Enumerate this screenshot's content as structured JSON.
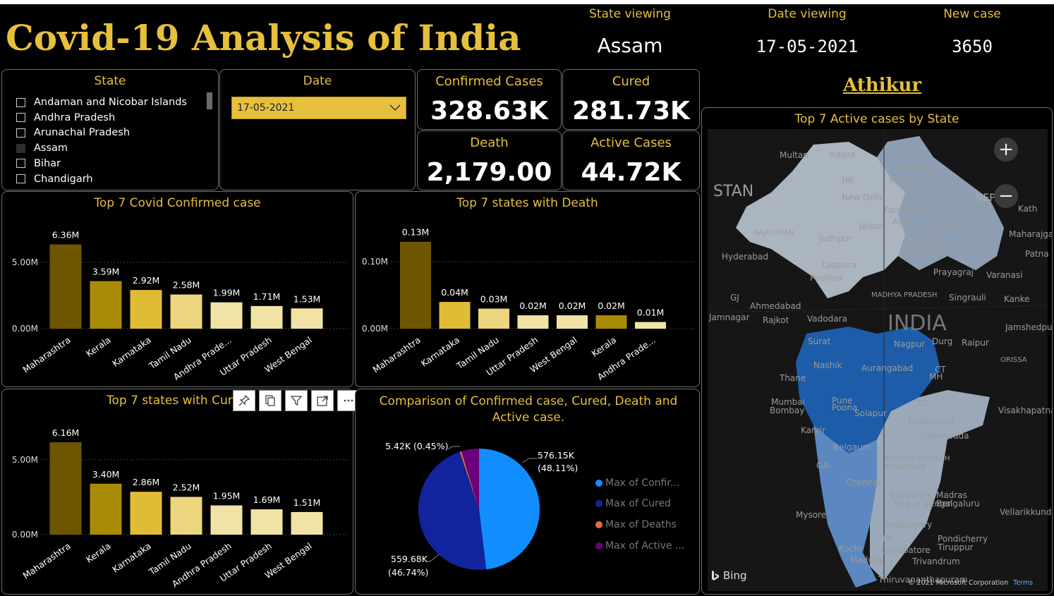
{
  "header": {
    "title": "Covid-19 Analysis of India",
    "state_viewing_label": "State viewing",
    "state_viewing_value": "Assam",
    "date_viewing_label": "Date viewing",
    "date_viewing_value": "17-05-2021",
    "new_case_label": "New case",
    "new_case_value": "3650"
  },
  "state_slicer": {
    "title": "State",
    "items": [
      {
        "label": "Andaman and Nicobar Islands",
        "selected": false
      },
      {
        "label": "Andhra Pradesh",
        "selected": false
      },
      {
        "label": "Arunachal Pradesh",
        "selected": false
      },
      {
        "label": "Assam",
        "selected": true
      },
      {
        "label": "Bihar",
        "selected": false
      },
      {
        "label": "Chandigarh",
        "selected": false
      }
    ]
  },
  "date_slicer": {
    "title": "Date",
    "value": "17-05-2021"
  },
  "kpis": {
    "confirmed": {
      "label": "Confirmed Cases",
      "value": "328.63K"
    },
    "cured": {
      "label": "Cured",
      "value": "281.73K"
    },
    "death": {
      "label": "Death",
      "value": "2,179.00"
    },
    "active": {
      "label": "Active Cases",
      "value": "44.72K"
    }
  },
  "author": "Athikur",
  "colors": {
    "accent": "#e6bf3c",
    "bar_dark": "#6e5600",
    "bar_mid": "#a98b05",
    "bar_gold": "#e0bc36",
    "bar_light": "#ecd57d",
    "bar_pale": "#f1e3a6",
    "pie_confirmed": "#118dff",
    "pie_cured": "#12239e",
    "pie_deaths": "#e66c37",
    "pie_active": "#6b007b"
  },
  "chart_data": [
    {
      "type": "bar",
      "title": "Top 7 Covid Confirmed case",
      "categories": [
        "Maharashtra",
        "Kerala",
        "Karnataka",
        "Tamil Nadu",
        "Andhra Prade...",
        "Uttar Pradesh",
        "West Bengal"
      ],
      "values": [
        6.36,
        3.59,
        2.92,
        2.58,
        1.99,
        1.71,
        1.53
      ],
      "data_labels": [
        "6.36M",
        "3.59M",
        "2.92M",
        "2.58M",
        "1.99M",
        "1.71M",
        "1.53M"
      ],
      "bar_colors": [
        "#6e5600",
        "#a98b05",
        "#e0bc36",
        "#ecd57d",
        "#f1e3a6",
        "#f1e3a6",
        "#f1e3a6"
      ],
      "yticks": [
        0,
        5
      ],
      "ytick_labels": [
        "0.00M",
        "5.00M"
      ],
      "ylim": [
        0,
        6.6
      ],
      "grid": true
    },
    {
      "type": "bar",
      "title": "Top 7 states with Death",
      "categories": [
        "Maharashtra",
        "Karnataka",
        "Tamil Nadu",
        "Uttar Pradesh",
        "West Bengal",
        "Kerala",
        "Andhra Prade..."
      ],
      "values": [
        0.13,
        0.04,
        0.03,
        0.02,
        0.02,
        0.02,
        0.01
      ],
      "data_labels": [
        "0.13M",
        "0.04M",
        "0.03M",
        "0.02M",
        "0.02M",
        "0.02M",
        "0.01M"
      ],
      "bar_colors": [
        "#6e5600",
        "#e0bc36",
        "#ecd57d",
        "#f1e3a6",
        "#f1e3a6",
        "#a98b05",
        "#f1e3a6"
      ],
      "yticks": [
        0,
        0.1
      ],
      "ytick_labels": [
        "0.00M",
        "0.10M"
      ],
      "ylim": [
        0,
        0.135
      ],
      "grid": true
    },
    {
      "type": "bar",
      "title": "Top 7 states with Cured",
      "categories": [
        "Maharashtra",
        "Kerala",
        "Karnataka",
        "Tamil Nadu",
        "Andhra Pradesh",
        "Uttar Pradesh",
        "West Bengal"
      ],
      "values": [
        6.16,
        3.4,
        2.86,
        2.52,
        1.95,
        1.69,
        1.51
      ],
      "data_labels": [
        "6.16M",
        "3.40M",
        "2.86M",
        "2.52M",
        "1.95M",
        "1.69M",
        "1.51M"
      ],
      "bar_colors": [
        "#6e5600",
        "#a98b05",
        "#e0bc36",
        "#ecd57d",
        "#f1e3a6",
        "#f1e3a6",
        "#f1e3a6"
      ],
      "yticks": [
        0,
        5
      ],
      "ytick_labels": [
        "0.00M",
        "5.00M"
      ],
      "ylim": [
        0,
        6.4
      ],
      "grid": true
    },
    {
      "type": "pie",
      "title": "Comparison of Confirmed case, Cured, Death and Active case.",
      "slices": [
        {
          "name": "Max of Confir...",
          "value": 576.15,
          "label": "576.15K",
          "pct_label": "(48.11%)",
          "color": "#118dff"
        },
        {
          "name": "Max of Cured",
          "value": 559.68,
          "label": "559.68K",
          "pct_label": "(46.74%)",
          "color": "#12239e"
        },
        {
          "name": "Max of Deaths",
          "value": 5.42,
          "label": "5.42K (0.45%)",
          "pct_label": "",
          "color": "#e66c37"
        },
        {
          "name": "Max of Active ...",
          "value": 56.38,
          "label": "",
          "pct_label": "",
          "color": "#6b007b"
        }
      ]
    }
  ],
  "map": {
    "title": "Top 7 Active cases by State",
    "zoom_in": "+",
    "zoom_out": "−",
    "provider": "Bing",
    "copyright": "© 2021 Microsoft Corporation",
    "terms": "Terms",
    "labels": [
      "Multan",
      "PUNJAB",
      "Dehra Dun",
      "UK",
      "HR",
      "Meerut",
      "STAN",
      "NEPAL",
      "Kath",
      "New Delhi",
      "Amroha",
      "Faridabad",
      "Agra",
      "Jaipur",
      "Lucknow",
      "UP",
      "RAJASTHAN",
      "Jodhpur",
      "Gwalior",
      "Kanpur",
      "Fatehpur",
      "Maharajganj",
      "Patna",
      "Hyderabad",
      "Ladpura",
      "Prayagraj",
      "Varanasi",
      "Poshina",
      "MADHYA PRADESH",
      "Singrauli",
      "GJ",
      "Ahmedabad",
      "Kanke",
      "Jamnagar",
      "Rajkot",
      "Vadodara",
      "INDIA",
      "Jamshedpur",
      "Surat",
      "Nagpur",
      "Durg",
      "Raipur",
      "Nashik",
      "Aurangabad",
      "ORISSA",
      "Thane",
      "MH",
      "CT",
      "Mumbai",
      "Bombay",
      "Pune",
      "Poona",
      "TG",
      "Solapur",
      "Hyderabad",
      "Visakhapatnam",
      "Karvir",
      "Vijayawada",
      "Belgaum",
      "GA",
      "ANDHRA PRADESH",
      "KARNATAKA",
      "Chennai",
      "Madras",
      "Bengaluru",
      "Bangalore",
      "Bay of Bengal",
      "Vellarikkund",
      "Mysore",
      "Puducherry",
      "Pondicherry",
      "Tiruppur",
      "TN",
      "Coimbatore",
      "Kochi",
      "Madurai",
      "Trivandrum",
      "Thiruvananthapuram"
    ]
  }
}
